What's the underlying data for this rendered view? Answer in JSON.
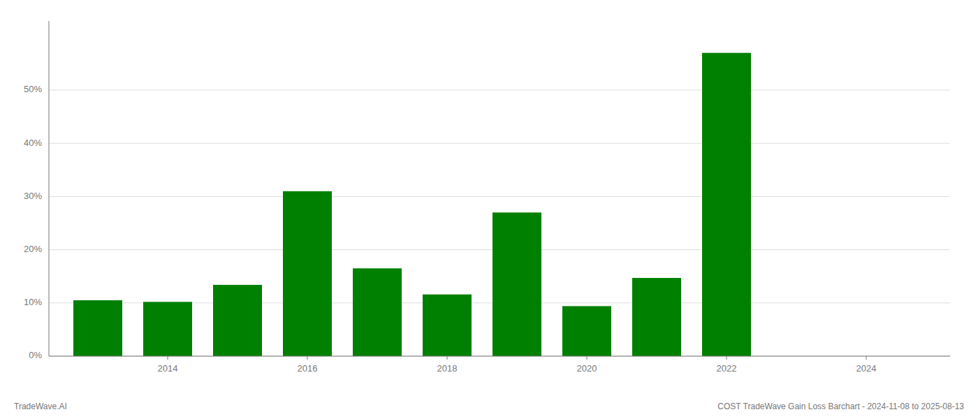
{
  "chart_data": {
    "type": "bar",
    "title": "COST TradeWave Gain Loss Barchart - 2024-11-08 to 2025-08-13",
    "annotations": [
      "TradeWave.AI"
    ],
    "x": [
      2013,
      2014,
      2015,
      2016,
      2017,
      2018,
      2019,
      2020,
      2021,
      2022
    ],
    "values": [
      0.105,
      0.102,
      0.134,
      0.31,
      0.165,
      0.116,
      0.27,
      0.094,
      0.147,
      0.57
    ],
    "color": "#008000",
    "xlim": [
      2012.3,
      2025.2
    ],
    "xticks": [
      2014,
      2016,
      2018,
      2020,
      2022,
      2024
    ],
    "ylim": [
      0,
      0.63
    ],
    "yticks": [
      {
        "value": 0.0,
        "label": "0%"
      },
      {
        "value": 0.1,
        "label": "10%"
      },
      {
        "value": 0.2,
        "label": "20%"
      },
      {
        "value": 0.3,
        "label": "30%"
      },
      {
        "value": 0.4,
        "label": "40%"
      },
      {
        "value": 0.5,
        "label": "50%"
      }
    ],
    "grid": true
  }
}
